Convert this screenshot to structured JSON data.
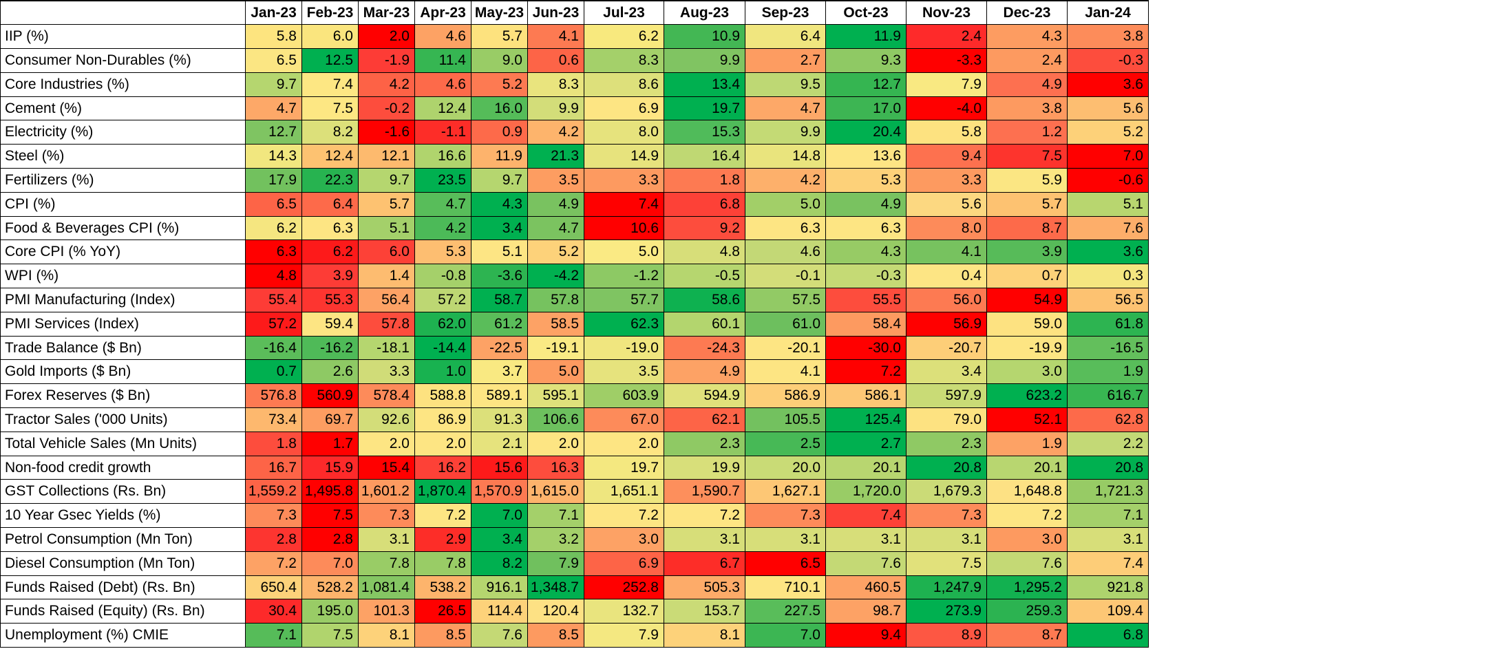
{
  "chart_data": {
    "type": "heatmap",
    "color_scale": {
      "worst": "#ff0000",
      "middle": "#ffeb84",
      "best": "#00b050",
      "note_direction": "per-row relative ranking; green = favourable, red = unfavourable"
    },
    "columns": [
      "Jan-23",
      "Feb-23",
      "Mar-23",
      "Apr-23",
      "May-23",
      "Jun-23",
      "Jul-23",
      "Aug-23",
      "Sep-23",
      "Oct-23",
      "Nov-23",
      "Dec-23",
      "Jan-24"
    ],
    "rows": [
      {
        "label": "IIP (%)",
        "values": [
          "5.8",
          "6.0",
          "2.0",
          "4.6",
          "5.7",
          "4.1",
          "6.2",
          "10.9",
          "6.4",
          "11.9",
          "2.4",
          "4.3",
          "3.8"
        ],
        "colors": [
          "#fde47f",
          "#fae57e",
          "#ff0000",
          "#fda264",
          "#fde27e",
          "#fd7a52",
          "#f8e97e",
          "#43b754",
          "#f0e67f",
          "#00b050",
          "#fe2a2a",
          "#fd9c61",
          "#fd8c5a"
        ]
      },
      {
        "label": "Consumer Non-Durables (%)",
        "values": [
          "6.5",
          "12.5",
          "-1.9",
          "11.4",
          "9.0",
          "0.6",
          "8.3",
          "9.9",
          "2.7",
          "9.3",
          "-3.3",
          "2.4",
          "-0.3"
        ],
        "colors": [
          "#fbe683",
          "#00b050",
          "#fd3c36",
          "#36b652",
          "#99cc66",
          "#fd6447",
          "#a4d06a",
          "#80c462",
          "#fd9c61",
          "#8fc964",
          "#ff0000",
          "#fd9a60",
          "#fd4d3d"
        ]
      },
      {
        "label": "Core Industries (%)",
        "values": [
          "9.7",
          "7.4",
          "4.2",
          "4.6",
          "5.2",
          "8.3",
          "8.6",
          "13.4",
          "9.5",
          "12.7",
          "7.9",
          "4.9",
          "3.6"
        ],
        "colors": [
          "#b5d66f",
          "#fde783",
          "#fd6246",
          "#fd6a4a",
          "#fd7a52",
          "#e9e47e",
          "#dde07b",
          "#00b050",
          "#bed874",
          "#35b551",
          "#f9e982",
          "#fd7050",
          "#ff0000"
        ]
      },
      {
        "label": "Cement (%)",
        "values": [
          "4.7",
          "7.5",
          "-0.2",
          "12.4",
          "16.0",
          "9.9",
          "6.9",
          "19.7",
          "4.7",
          "17.0",
          "-4.0",
          "3.8",
          "5.6"
        ],
        "colors": [
          "#fda868",
          "#fde783",
          "#fd4d3d",
          "#aed36d",
          "#55bc59",
          "#d3dd79",
          "#fde583",
          "#00b050",
          "#fda868",
          "#3db553",
          "#ff0000",
          "#fd9a60",
          "#fdbe71"
        ]
      },
      {
        "label": "Electricity (%)",
        "values": [
          "12.7",
          "8.2",
          "-1.6",
          "-1.1",
          "0.9",
          "4.2",
          "8.0",
          "15.3",
          "9.9",
          "20.4",
          "5.8",
          "1.2",
          "5.2"
        ],
        "colors": [
          "#7fc462",
          "#dce07a",
          "#ff0000",
          "#fd2d28",
          "#fd6a4a",
          "#fdb46c",
          "#e6e37d",
          "#50bb5a",
          "#c4da75",
          "#00b050",
          "#fde280",
          "#fd7050",
          "#fdd179"
        ]
      },
      {
        "label": "Steel (%)",
        "values": [
          "14.3",
          "12.4",
          "12.1",
          "16.6",
          "11.9",
          "21.3",
          "14.9",
          "16.4",
          "14.8",
          "13.6",
          "9.4",
          "7.5",
          "7.0"
        ],
        "colors": [
          "#f1e77f",
          "#fdc271",
          "#fdba6e",
          "#b0d46d",
          "#fdb36c",
          "#00b050",
          "#e7e37d",
          "#bfd873",
          "#e9e47d",
          "#fde584",
          "#fd714f",
          "#fd342d",
          "#ff0000"
        ]
      },
      {
        "label": "Fertilizers (%)",
        "values": [
          "17.9",
          "22.3",
          "9.7",
          "23.5",
          "9.7",
          "3.5",
          "3.3",
          "1.8",
          "4.2",
          "5.3",
          "3.3",
          "5.9",
          "-0.6"
        ],
        "colors": [
          "#72c15e",
          "#27b350",
          "#b5d66f",
          "#00b050",
          "#b5d66f",
          "#fd9d61",
          "#fd9a60",
          "#fd7a52",
          "#fdb06b",
          "#fdd179",
          "#fd9a60",
          "#fbe683",
          "#ff0000"
        ]
      },
      {
        "label": "CPI (%)",
        "values": [
          "6.5",
          "6.4",
          "5.7",
          "4.7",
          "4.3",
          "4.9",
          "7.4",
          "6.8",
          "5.0",
          "4.9",
          "5.6",
          "5.7",
          "5.1"
        ],
        "colors": [
          "#fd6447",
          "#fd6a4a",
          "#fdc271",
          "#58bd5a",
          "#00b050",
          "#79c260",
          "#ff0000",
          "#fd4137",
          "#a2cf68",
          "#79c260",
          "#fcd881",
          "#fdc271",
          "#b8d66f"
        ]
      },
      {
        "label": "Food & Beverages CPI (%)",
        "values": [
          "6.2",
          "6.3",
          "5.1",
          "4.2",
          "3.4",
          "4.7",
          "10.6",
          "9.2",
          "6.3",
          "6.3",
          "8.0",
          "8.7",
          "7.6"
        ],
        "colors": [
          "#f5e680",
          "#fde583",
          "#a4d06a",
          "#4cba58",
          "#00b050",
          "#7bc360",
          "#ff0000",
          "#fd4d3d",
          "#fde583",
          "#fde583",
          "#fd8b5a",
          "#fd6a4a",
          "#fdae6a"
        ]
      },
      {
        "label": "Core CPI (% YoY)",
        "values": [
          "6.3",
          "6.2",
          "6.0",
          "5.3",
          "5.1",
          "5.2",
          "5.0",
          "4.8",
          "4.6",
          "4.3",
          "4.1",
          "3.9",
          "3.6"
        ],
        "colors": [
          "#ff0000",
          "#fd1a1a",
          "#fd4137",
          "#fdbe71",
          "#fde584",
          "#fdd27a",
          "#faea84",
          "#d7de79",
          "#c3d876",
          "#97cb65",
          "#77c25f",
          "#57bb59",
          "#00b050"
        ]
      },
      {
        "label": "WPI (%)",
        "values": [
          "4.8",
          "3.9",
          "1.4",
          "-0.8",
          "-3.6",
          "-4.2",
          "-1.2",
          "-0.5",
          "-0.1",
          "-0.3",
          "0.4",
          "0.7",
          "0.3"
        ],
        "colors": [
          "#ff0000",
          "#fd3c36",
          "#fdbc70",
          "#a5d06a",
          "#2db451",
          "#00b050",
          "#8dc964",
          "#b6d66f",
          "#d3dd79",
          "#c5da75",
          "#fde584",
          "#fdd27a",
          "#f5e680"
        ]
      },
      {
        "label": "PMI Manufacturing (Index)",
        "values": [
          "55.4",
          "55.3",
          "56.4",
          "57.2",
          "58.7",
          "57.8",
          "57.7",
          "58.6",
          "57.5",
          "55.5",
          "56.0",
          "54.9",
          "56.5"
        ],
        "colors": [
          "#fd3c36",
          "#fd3530",
          "#fda265",
          "#bdd773",
          "#00b050",
          "#76c25f",
          "#7fc462",
          "#0eb150",
          "#92ca65",
          "#fd4d3d",
          "#fd7a52",
          "#ff0000",
          "#fdc271"
        ]
      },
      {
        "label": "PMI Services (Index)",
        "values": [
          "57.2",
          "59.4",
          "57.8",
          "62.0",
          "61.2",
          "58.5",
          "62.3",
          "60.1",
          "61.0",
          "58.4",
          "56.9",
          "59.0",
          "61.8"
        ],
        "colors": [
          "#fd1a1a",
          "#fde583",
          "#fd4d3d",
          "#1eb250",
          "#5abd5a",
          "#fda265",
          "#00b050",
          "#b3d56e",
          "#6dbf5e",
          "#fd9a60",
          "#ff0000",
          "#fde281",
          "#2db451"
        ]
      },
      {
        "label": "Trade Balance ($ Bn)",
        "values": [
          "-16.4",
          "-16.2",
          "-18.1",
          "-14.4",
          "-22.5",
          "-19.1",
          "-19.0",
          "-24.3",
          "-20.1",
          "-30.0",
          "-20.7",
          "-19.9",
          "-16.5"
        ],
        "colors": [
          "#5bbd5a",
          "#4fba58",
          "#b5d66f",
          "#00b050",
          "#fda265",
          "#faea84",
          "#f0e67f",
          "#fd7a52",
          "#fde583",
          "#ff0000",
          "#fdce78",
          "#fde583",
          "#63bf5c"
        ]
      },
      {
        "label": "Gold Imports ($ Bn)",
        "values": [
          "0.7",
          "2.6",
          "3.3",
          "1.0",
          "3.7",
          "5.0",
          "3.5",
          "4.9",
          "4.1",
          "7.2",
          "3.4",
          "3.0",
          "1.9"
        ],
        "colors": [
          "#00b050",
          "#8ec964",
          "#d0dc78",
          "#18b250",
          "#f9e982",
          "#fd9a60",
          "#e6e37d",
          "#fda265",
          "#fde583",
          "#ff0000",
          "#dce07a",
          "#b5d66f",
          "#58bd5a"
        ]
      },
      {
        "label": "Forex Reserves ($ Bn)",
        "values": [
          "576.8",
          "560.9",
          "578.4",
          "588.8",
          "589.1",
          "595.1",
          "603.9",
          "594.9",
          "586.9",
          "586.1",
          "597.9",
          "623.2",
          "616.7"
        ],
        "colors": [
          "#fd7a52",
          "#ff0000",
          "#fd8b5a",
          "#fde280",
          "#fde583",
          "#dfe17b",
          "#9fce67",
          "#e0e17b",
          "#fdce78",
          "#fdc775",
          "#c9db76",
          "#00b050",
          "#38b652"
        ]
      },
      {
        "label": "Tractor Sales ('000 Units)",
        "values": [
          "73.4",
          "69.7",
          "92.6",
          "86.9",
          "91.3",
          "106.6",
          "67.0",
          "62.1",
          "105.5",
          "125.4",
          "79.0",
          "52.1",
          "62.8"
        ],
        "colors": [
          "#fdb86e",
          "#fd9d61",
          "#d3dd79",
          "#fde583",
          "#dce07a",
          "#6dc05e",
          "#fd8b5a",
          "#fd6447",
          "#73c15f",
          "#00b050",
          "#fde281",
          "#ff0000",
          "#fd6a4a"
        ]
      },
      {
        "label": "Total Vehicle Sales (Mn Units)",
        "values": [
          "1.8",
          "1.7",
          "2.0",
          "2.0",
          "2.1",
          "2.0",
          "2.0",
          "2.3",
          "2.5",
          "2.7",
          "2.3",
          "1.9",
          "2.2"
        ],
        "colors": [
          "#fd4d3d",
          "#ff0000",
          "#fde583",
          "#fde583",
          "#e6e37d",
          "#fde583",
          "#fde583",
          "#8fc964",
          "#47b956",
          "#00b050",
          "#8fc964",
          "#fda265",
          "#c3d976"
        ]
      },
      {
        "label": "Non-food credit growth",
        "values": [
          "16.7",
          "15.9",
          "15.4",
          "16.2",
          "15.6",
          "16.3",
          "19.7",
          "19.9",
          "20.0",
          "20.1",
          "20.8",
          "20.1",
          "20.8"
        ],
        "colors": [
          "#fd6447",
          "#fd2a2a",
          "#ff0000",
          "#fd4137",
          "#fd1a1a",
          "#fd4d3d",
          "#f4e880",
          "#d8df7a",
          "#c9db76",
          "#b8d670",
          "#00b050",
          "#b8d670",
          "#00b050"
        ]
      },
      {
        "label": "GST Collections (Rs. Bn)",
        "values": [
          "1,559.2",
          "1,495.8",
          "1,601.2",
          "1,870.4",
          "1,570.9",
          "1,615.0",
          "1,651.1",
          "1,590.7",
          "1,627.1",
          "1,720.0",
          "1,679.3",
          "1,648.8",
          "1,721.3"
        ],
        "colors": [
          "#fd6447",
          "#ff0000",
          "#fd9a60",
          "#00b050",
          "#fd7a52",
          "#fdb36c",
          "#eee67f",
          "#fd8f5c",
          "#fdc775",
          "#99cc66",
          "#cbdb77",
          "#fde184",
          "#97cb65"
        ]
      },
      {
        "label": "10 Year Gsec Yields (%)",
        "values": [
          "7.3",
          "7.5",
          "7.3",
          "7.2",
          "7.0",
          "7.1",
          "7.2",
          "7.2",
          "7.3",
          "7.4",
          "7.3",
          "7.2",
          "7.1"
        ],
        "colors": [
          "#fd8b5a",
          "#ff0000",
          "#fd8b5a",
          "#fde583",
          "#00b050",
          "#a4d06a",
          "#fde583",
          "#fde583",
          "#fd8b5a",
          "#fd4137",
          "#fd8b5a",
          "#fde583",
          "#a4d06a"
        ]
      },
      {
        "label": "Petrol Consumption (Mn Ton)",
        "values": [
          "2.8",
          "2.8",
          "3.1",
          "2.9",
          "3.4",
          "3.2",
          "3.0",
          "3.1",
          "3.1",
          "3.1",
          "3.1",
          "3.0",
          "3.1"
        ],
        "colors": [
          "#fd3530",
          "#ff0000",
          "#d7de79",
          "#fd2d28",
          "#00b050",
          "#a4d06a",
          "#fda265",
          "#d7de79",
          "#d7de79",
          "#d7de79",
          "#d7de79",
          "#fd9a60",
          "#d7de79"
        ]
      },
      {
        "label": "Diesel Consumption (Mn Ton)",
        "values": [
          "7.2",
          "7.0",
          "7.8",
          "7.8",
          "8.2",
          "7.9",
          "6.9",
          "6.7",
          "6.5",
          "7.6",
          "7.5",
          "7.6",
          "7.4"
        ],
        "colors": [
          "#fda265",
          "#fd8b5a",
          "#99cc66",
          "#99cc66",
          "#00b050",
          "#70c05e",
          "#fd6447",
          "#fd2d28",
          "#ff0000",
          "#c4d975",
          "#e1e17b",
          "#c4d975",
          "#fdcd78"
        ]
      },
      {
        "label": "Funds Raised (Debt) (Rs. Bn)",
        "values": [
          "650.4",
          "528.2",
          "1,081.4",
          "538.2",
          "916.1",
          "1,348.7",
          "252.8",
          "505.3",
          "710.1",
          "460.5",
          "1,247.9",
          "1,295.2",
          "921.8"
        ],
        "colors": [
          "#fdd27a",
          "#fdb46c",
          "#85c663",
          "#fdb46c",
          "#b5d66f",
          "#00b050",
          "#ff0000",
          "#fdab69",
          "#fde583",
          "#fda265",
          "#1eb250",
          "#12b150",
          "#aed36d"
        ]
      },
      {
        "label": "Funds Raised (Equity) (Rs. Bn)",
        "values": [
          "30.4",
          "195.0",
          "101.3",
          "26.5",
          "114.4",
          "120.4",
          "132.7",
          "153.7",
          "227.5",
          "98.7",
          "273.9",
          "259.3",
          "109.4"
        ],
        "colors": [
          "#fd2a2a",
          "#99cc66",
          "#fda265",
          "#ff0000",
          "#fdd27a",
          "#fde184",
          "#e9e47e",
          "#cadb77",
          "#59bd5a",
          "#fda265",
          "#00b050",
          "#2cb351",
          "#fdc775"
        ]
      },
      {
        "label": "Unemployment (%) CMIE",
        "values": [
          "7.1",
          "7.5",
          "8.1",
          "8.5",
          "7.6",
          "8.5",
          "7.9",
          "8.1",
          "7.0",
          "9.4",
          "8.9",
          "8.7",
          "6.8"
        ],
        "colors": [
          "#56bc59",
          "#b0d46d",
          "#fdd27a",
          "#fd9a60",
          "#c4d975",
          "#fd9a60",
          "#f4e881",
          "#fdd27a",
          "#3cb653",
          "#ff0000",
          "#fd5743",
          "#fd7a52",
          "#00b050"
        ]
      }
    ]
  }
}
